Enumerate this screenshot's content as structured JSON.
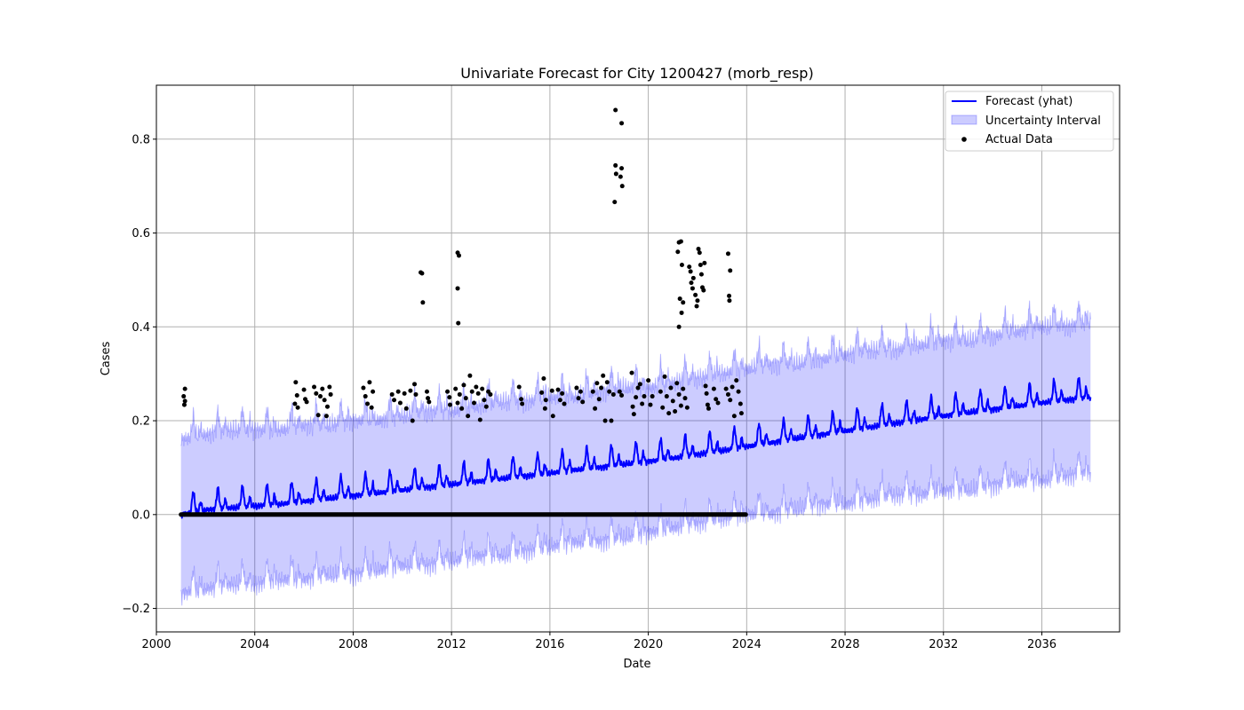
{
  "chart_data": {
    "type": "line",
    "title": "Univariate Forecast for City 1200427 (morb_resp)",
    "xlabel": "Date",
    "ylabel": "Cases",
    "xlim": [
      "2000-01-01",
      "2039-03-01"
    ],
    "ylim": [
      -0.25,
      0.915
    ],
    "x_ticks": [
      "2000",
      "2004",
      "2008",
      "2012",
      "2016",
      "2020",
      "2024",
      "2028",
      "2032",
      "2036"
    ],
    "y_ticks": [
      "−0.2",
      "0.0",
      "0.2",
      "0.4",
      "0.6",
      "0.8"
    ],
    "grid": true,
    "legend_position": "top-right",
    "legend": [
      "Forecast (yhat)",
      "Uncertainty Interval",
      "Actual Data"
    ],
    "colors": {
      "forecast": "#0000ff",
      "interval": "#0000ff",
      "actual": "#000000",
      "grid": "#b0b0b0"
    },
    "forecast_period": {
      "start": "2001-01-01",
      "end": "2037-12-31"
    },
    "forecast_yearly": [
      {
        "x": "2001-01-01",
        "lower": -0.17,
        "yhat": 0.0,
        "upper": 0.16
      },
      {
        "x": "2002-01-01",
        "lower": -0.16,
        "yhat": 0.01,
        "upper": 0.17
      },
      {
        "x": "2003-01-01",
        "lower": -0.15,
        "yhat": 0.014,
        "upper": 0.18
      },
      {
        "x": "2004-01-01",
        "lower": -0.15,
        "yhat": 0.018,
        "upper": 0.18
      },
      {
        "x": "2005-01-01",
        "lower": -0.14,
        "yhat": 0.022,
        "upper": 0.18
      },
      {
        "x": "2006-01-01",
        "lower": -0.14,
        "yhat": 0.028,
        "upper": 0.19
      },
      {
        "x": "2007-01-01",
        "lower": -0.13,
        "yhat": 0.034,
        "upper": 0.19
      },
      {
        "x": "2008-01-01",
        "lower": -0.13,
        "yhat": 0.04,
        "upper": 0.2
      },
      {
        "x": "2009-01-01",
        "lower": -0.12,
        "yhat": 0.046,
        "upper": 0.2
      },
      {
        "x": "2010-01-01",
        "lower": -0.11,
        "yhat": 0.052,
        "upper": 0.21
      },
      {
        "x": "2011-01-01",
        "lower": -0.11,
        "yhat": 0.058,
        "upper": 0.22
      },
      {
        "x": "2012-01-01",
        "lower": -0.1,
        "yhat": 0.064,
        "upper": 0.22
      },
      {
        "x": "2013-01-01",
        "lower": -0.09,
        "yhat": 0.07,
        "upper": 0.23
      },
      {
        "x": "2014-01-01",
        "lower": -0.09,
        "yhat": 0.076,
        "upper": 0.24
      },
      {
        "x": "2015-01-01",
        "lower": -0.08,
        "yhat": 0.082,
        "upper": 0.24
      },
      {
        "x": "2016-01-01",
        "lower": -0.07,
        "yhat": 0.088,
        "upper": 0.25
      },
      {
        "x": "2017-01-01",
        "lower": -0.06,
        "yhat": 0.095,
        "upper": 0.25
      },
      {
        "x": "2018-01-01",
        "lower": -0.06,
        "yhat": 0.1,
        "upper": 0.26
      },
      {
        "x": "2019-01-01",
        "lower": -0.05,
        "yhat": 0.107,
        "upper": 0.27
      },
      {
        "x": "2020-01-01",
        "lower": -0.04,
        "yhat": 0.113,
        "upper": 0.27
      },
      {
        "x": "2021-01-01",
        "lower": -0.03,
        "yhat": 0.12,
        "upper": 0.28
      },
      {
        "x": "2022-01-01",
        "lower": -0.02,
        "yhat": 0.128,
        "upper": 0.29
      },
      {
        "x": "2023-01-01",
        "lower": -0.01,
        "yhat": 0.136,
        "upper": 0.3
      },
      {
        "x": "2024-01-01",
        "lower": 0.0,
        "yhat": 0.145,
        "upper": 0.31
      },
      {
        "x": "2025-01-01",
        "lower": 0.0,
        "yhat": 0.153,
        "upper": 0.32
      },
      {
        "x": "2026-01-01",
        "lower": 0.01,
        "yhat": 0.162,
        "upper": 0.32
      },
      {
        "x": "2027-01-01",
        "lower": 0.02,
        "yhat": 0.17,
        "upper": 0.33
      },
      {
        "x": "2028-01-01",
        "lower": 0.02,
        "yhat": 0.178,
        "upper": 0.34
      },
      {
        "x": "2029-01-01",
        "lower": 0.03,
        "yhat": 0.186,
        "upper": 0.35
      },
      {
        "x": "2030-01-01",
        "lower": 0.04,
        "yhat": 0.194,
        "upper": 0.35
      },
      {
        "x": "2031-01-01",
        "lower": 0.04,
        "yhat": 0.202,
        "upper": 0.36
      },
      {
        "x": "2032-01-01",
        "lower": 0.05,
        "yhat": 0.21,
        "upper": 0.37
      },
      {
        "x": "2033-01-01",
        "lower": 0.05,
        "yhat": 0.217,
        "upper": 0.37
      },
      {
        "x": "2034-01-01",
        "lower": 0.06,
        "yhat": 0.224,
        "upper": 0.38
      },
      {
        "x": "2035-01-01",
        "lower": 0.07,
        "yhat": 0.231,
        "upper": 0.39
      },
      {
        "x": "2036-01-01",
        "lower": 0.07,
        "yhat": 0.238,
        "upper": 0.4
      },
      {
        "x": "2037-01-01",
        "lower": 0.08,
        "yhat": 0.244,
        "upper": 0.4
      },
      {
        "x": "2037-12-31",
        "lower": 0.09,
        "yhat": 0.25,
        "upper": 0.41
      }
    ],
    "actual_zero_period": {
      "start": "2001-01-01",
      "end": "2023-12-31",
      "value": 0.0
    },
    "actual_points": [
      {
        "x": "2001-03-01",
        "y": 0.268
      },
      {
        "x": "2001-02-10",
        "y": 0.252
      },
      {
        "x": "2001-03-01",
        "y": 0.242
      },
      {
        "x": "2001-02-20",
        "y": 0.234
      },
      {
        "x": "2005-09-01",
        "y": 0.282
      },
      {
        "x": "2005-09-20",
        "y": 0.254
      },
      {
        "x": "2005-08-20",
        "y": 0.236
      },
      {
        "x": "2005-10-01",
        "y": 0.228
      },
      {
        "x": "2006-01-01",
        "y": 0.266
      },
      {
        "x": "2006-01-20",
        "y": 0.246
      },
      {
        "x": "2006-02-10",
        "y": 0.24
      },
      {
        "x": "2006-06-01",
        "y": 0.272
      },
      {
        "x": "2006-07-01",
        "y": 0.258
      },
      {
        "x": "2006-08-01",
        "y": 0.212
      },
      {
        "x": "2006-09-01",
        "y": 0.252
      },
      {
        "x": "2006-10-01",
        "y": 0.268
      },
      {
        "x": "2006-11-01",
        "y": 0.244
      },
      {
        "x": "2006-12-01",
        "y": 0.21
      },
      {
        "x": "2006-12-15",
        "y": 0.23
      },
      {
        "x": "2007-01-15",
        "y": 0.272
      },
      {
        "x": "2007-02-01",
        "y": 0.256
      },
      {
        "x": "2008-06-01",
        "y": 0.27
      },
      {
        "x": "2008-07-01",
        "y": 0.252
      },
      {
        "x": "2008-08-01",
        "y": 0.236
      },
      {
        "x": "2008-09-01",
        "y": 0.282
      },
      {
        "x": "2008-10-01",
        "y": 0.228
      },
      {
        "x": "2008-10-20",
        "y": 0.262
      },
      {
        "x": "2009-08-01",
        "y": 0.256
      },
      {
        "x": "2009-09-01",
        "y": 0.244
      },
      {
        "x": "2009-11-01",
        "y": 0.262
      },
      {
        "x": "2009-12-01",
        "y": 0.238
      },
      {
        "x": "2010-02-01",
        "y": 0.258
      },
      {
        "x": "2010-03-01",
        "y": 0.226
      },
      {
        "x": "2010-05-01",
        "y": 0.264
      },
      {
        "x": "2010-06-01",
        "y": 0.2
      },
      {
        "x": "2010-07-01",
        "y": 0.278
      },
      {
        "x": "2010-07-20",
        "y": 0.256
      },
      {
        "x": "2010-10-01",
        "y": 0.516
      },
      {
        "x": "2010-10-20",
        "y": 0.514
      },
      {
        "x": "2010-11-01",
        "y": 0.452
      },
      {
        "x": "2011-01-01",
        "y": 0.262
      },
      {
        "x": "2011-01-15",
        "y": 0.248
      },
      {
        "x": "2011-02-01",
        "y": 0.24
      },
      {
        "x": "2011-11-01",
        "y": 0.262
      },
      {
        "x": "2011-12-01",
        "y": 0.25
      },
      {
        "x": "2011-12-10",
        "y": 0.234
      },
      {
        "x": "2012-04-01",
        "y": 0.558
      },
      {
        "x": "2012-04-20",
        "y": 0.552
      },
      {
        "x": "2012-04-01",
        "y": 0.482
      },
      {
        "x": "2012-04-10",
        "y": 0.408
      },
      {
        "x": "2012-03-01",
        "y": 0.268
      },
      {
        "x": "2012-04-01",
        "y": 0.238
      },
      {
        "x": "2012-05-01",
        "y": 0.256
      },
      {
        "x": "2012-06-01",
        "y": 0.226
      },
      {
        "x": "2012-07-01",
        "y": 0.276
      },
      {
        "x": "2012-08-01",
        "y": 0.248
      },
      {
        "x": "2012-09-01",
        "y": 0.21
      },
      {
        "x": "2012-10-01",
        "y": 0.296
      },
      {
        "x": "2012-11-01",
        "y": 0.262
      },
      {
        "x": "2012-12-01",
        "y": 0.238
      },
      {
        "x": "2013-01-01",
        "y": 0.272
      },
      {
        "x": "2013-02-01",
        "y": 0.258
      },
      {
        "x": "2013-03-01",
        "y": 0.202
      },
      {
        "x": "2013-04-01",
        "y": 0.268
      },
      {
        "x": "2013-05-01",
        "y": 0.244
      },
      {
        "x": "2013-06-01",
        "y": 0.23
      },
      {
        "x": "2013-07-01",
        "y": 0.262
      },
      {
        "x": "2013-08-01",
        "y": 0.256
      },
      {
        "x": "2014-10-01",
        "y": 0.272
      },
      {
        "x": "2014-11-01",
        "y": 0.246
      },
      {
        "x": "2014-11-15",
        "y": 0.236
      },
      {
        "x": "2015-09-01",
        "y": 0.26
      },
      {
        "x": "2015-10-01",
        "y": 0.29
      },
      {
        "x": "2015-10-20",
        "y": 0.226
      },
      {
        "x": "2015-11-01",
        "y": 0.244
      },
      {
        "x": "2016-02-01",
        "y": 0.264
      },
      {
        "x": "2016-02-15",
        "y": 0.21
      },
      {
        "x": "2016-05-01",
        "y": 0.266
      },
      {
        "x": "2016-06-01",
        "y": 0.244
      },
      {
        "x": "2016-07-01",
        "y": 0.258
      },
      {
        "x": "2016-08-01",
        "y": 0.236
      },
      {
        "x": "2017-02-01",
        "y": 0.27
      },
      {
        "x": "2017-03-01",
        "y": 0.248
      },
      {
        "x": "2017-04-01",
        "y": 0.262
      },
      {
        "x": "2017-05-01",
        "y": 0.24
      },
      {
        "x": "2017-10-01",
        "y": 0.262
      },
      {
        "x": "2017-11-01",
        "y": 0.226
      },
      {
        "x": "2017-12-01",
        "y": 0.28
      },
      {
        "x": "2018-01-01",
        "y": 0.246
      },
      {
        "x": "2018-02-01",
        "y": 0.27
      },
      {
        "x": "2018-03-01",
        "y": 0.296
      },
      {
        "x": "2018-04-01",
        "y": 0.2
      },
      {
        "x": "2018-05-01",
        "y": 0.282
      },
      {
        "x": "2018-06-01",
        "y": 0.262
      },
      {
        "x": "2018-07-01",
        "y": 0.2
      },
      {
        "x": "2018-08-01",
        "y": 0.256
      },
      {
        "x": "2018-09-01",
        "y": 0.862
      },
      {
        "x": "2018-09-01",
        "y": 0.744
      },
      {
        "x": "2018-09-10",
        "y": 0.726
      },
      {
        "x": "2018-08-20",
        "y": 0.666
      },
      {
        "x": "2018-12-01",
        "y": 0.834
      },
      {
        "x": "2018-12-01",
        "y": 0.738
      },
      {
        "x": "2018-11-15",
        "y": 0.72
      },
      {
        "x": "2018-12-10",
        "y": 0.7
      },
      {
        "x": "2018-11-01",
        "y": 0.262
      },
      {
        "x": "2018-12-01",
        "y": 0.254
      },
      {
        "x": "2019-05-01",
        "y": 0.302
      },
      {
        "x": "2019-05-15",
        "y": 0.23
      },
      {
        "x": "2019-06-01",
        "y": 0.214
      },
      {
        "x": "2019-07-01",
        "y": 0.25
      },
      {
        "x": "2019-08-01",
        "y": 0.27
      },
      {
        "x": "2019-09-01",
        "y": 0.278
      },
      {
        "x": "2019-10-01",
        "y": 0.236
      },
      {
        "x": "2019-11-01",
        "y": 0.252
      },
      {
        "x": "2020-01-01",
        "y": 0.286
      },
      {
        "x": "2020-02-01",
        "y": 0.234
      },
      {
        "x": "2020-03-01",
        "y": 0.252
      },
      {
        "x": "2020-07-01",
        "y": 0.262
      },
      {
        "x": "2020-08-01",
        "y": 0.228
      },
      {
        "x": "2020-09-01",
        "y": 0.294
      },
      {
        "x": "2020-10-01",
        "y": 0.252
      },
      {
        "x": "2020-11-01",
        "y": 0.216
      },
      {
        "x": "2020-12-01",
        "y": 0.27
      },
      {
        "x": "2021-01-01",
        "y": 0.242
      },
      {
        "x": "2021-02-01",
        "y": 0.22
      },
      {
        "x": "2021-03-01",
        "y": 0.28
      },
      {
        "x": "2021-04-01",
        "y": 0.256
      },
      {
        "x": "2021-05-01",
        "y": 0.232
      },
      {
        "x": "2021-06-01",
        "y": 0.268
      },
      {
        "x": "2021-07-01",
        "y": 0.248
      },
      {
        "x": "2021-08-01",
        "y": 0.228
      },
      {
        "x": "2021-04-01",
        "y": 0.58
      },
      {
        "x": "2021-05-01",
        "y": 0.582
      },
      {
        "x": "2021-03-15",
        "y": 0.56
      },
      {
        "x": "2021-05-15",
        "y": 0.532
      },
      {
        "x": "2021-04-15",
        "y": 0.46
      },
      {
        "x": "2021-06-01",
        "y": 0.452
      },
      {
        "x": "2021-05-10",
        "y": 0.43
      },
      {
        "x": "2021-04-01",
        "y": 0.4
      },
      {
        "x": "2021-09-01",
        "y": 0.528
      },
      {
        "x": "2021-09-20",
        "y": 0.518
      },
      {
        "x": "2021-10-01",
        "y": 0.494
      },
      {
        "x": "2021-10-20",
        "y": 0.482
      },
      {
        "x": "2021-11-01",
        "y": 0.504
      },
      {
        "x": "2021-12-01",
        "y": 0.468
      },
      {
        "x": "2022-01-01",
        "y": 0.456
      },
      {
        "x": "2021-12-20",
        "y": 0.444
      },
      {
        "x": "2022-01-15",
        "y": 0.566
      },
      {
        "x": "2022-02-01",
        "y": 0.558
      },
      {
        "x": "2022-02-15",
        "y": 0.532
      },
      {
        "x": "2022-03-01",
        "y": 0.512
      },
      {
        "x": "2022-03-15",
        "y": 0.484
      },
      {
        "x": "2022-04-01",
        "y": 0.478
      },
      {
        "x": "2022-04-15",
        "y": 0.536
      },
      {
        "x": "2022-05-01",
        "y": 0.274
      },
      {
        "x": "2022-05-15",
        "y": 0.258
      },
      {
        "x": "2022-06-01",
        "y": 0.234
      },
      {
        "x": "2022-06-15",
        "y": 0.226
      },
      {
        "x": "2022-09-01",
        "y": 0.268
      },
      {
        "x": "2022-10-01",
        "y": 0.246
      },
      {
        "x": "2022-11-01",
        "y": 0.238
      },
      {
        "x": "2023-04-01",
        "y": 0.556
      },
      {
        "x": "2023-05-01",
        "y": 0.52
      },
      {
        "x": "2023-04-15",
        "y": 0.466
      },
      {
        "x": "2023-04-20",
        "y": 0.456
      },
      {
        "x": "2023-03-01",
        "y": 0.268
      },
      {
        "x": "2023-04-01",
        "y": 0.256
      },
      {
        "x": "2023-05-01",
        "y": 0.244
      },
      {
        "x": "2023-06-01",
        "y": 0.272
      },
      {
        "x": "2023-07-01",
        "y": 0.21
      },
      {
        "x": "2023-08-01",
        "y": 0.286
      },
      {
        "x": "2023-09-01",
        "y": 0.262
      },
      {
        "x": "2023-10-01",
        "y": 0.236
      },
      {
        "x": "2023-10-15",
        "y": 0.216
      }
    ]
  }
}
